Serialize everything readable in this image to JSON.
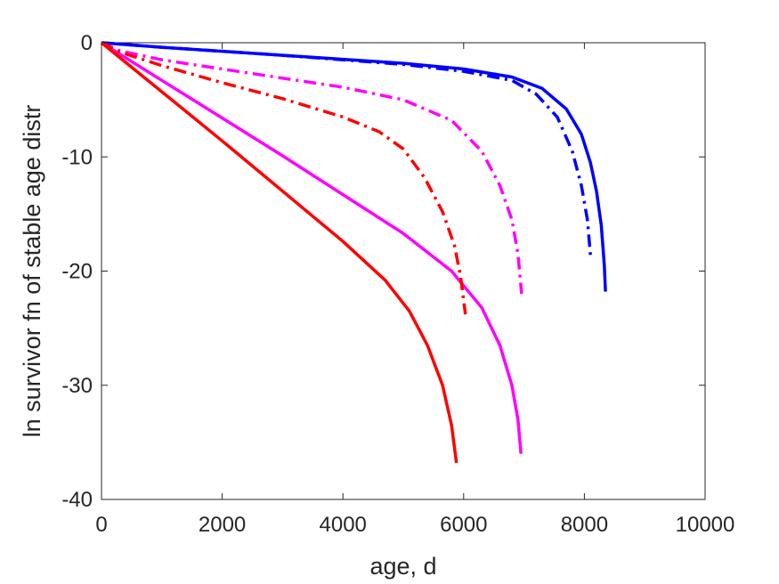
{
  "chart_data": {
    "type": "line",
    "title": "",
    "xlabel": "age, d",
    "ylabel": "ln survivor fn of stable age distr",
    "xlim": [
      0,
      10000
    ],
    "ylim": [
      -40,
      0
    ],
    "xticks": [
      0,
      2000,
      4000,
      6000,
      8000,
      10000
    ],
    "yticks": [
      -40,
      -30,
      -20,
      -10,
      0
    ],
    "xtick_labels": [
      "0",
      "2000",
      "4000",
      "6000",
      "8000",
      "10000"
    ],
    "ytick_labels": [
      "-40",
      "-30",
      "-20",
      "-10",
      "0"
    ],
    "grid": false,
    "legend": "none",
    "series": [
      {
        "color": "#0000ff",
        "dash": "solid",
        "x": [
          0,
          1000,
          2000,
          3000,
          4000,
          5000,
          6000,
          6800,
          7300,
          7700,
          7950,
          8100,
          8200,
          8280,
          8330,
          8350
        ],
        "y": [
          0,
          -0.4,
          -0.75,
          -1.1,
          -1.45,
          -1.8,
          -2.3,
          -3.0,
          -4.0,
          -5.8,
          -8.0,
          -10.5,
          -13.0,
          -16.0,
          -19.5,
          -21.8
        ]
      },
      {
        "color": "#0000ff",
        "dash": "dashdot",
        "x": [
          0,
          1000,
          2000,
          3000,
          4000,
          5000,
          6000,
          6800,
          7200,
          7550,
          7800,
          7950,
          8050,
          8100
        ],
        "y": [
          0,
          -0.4,
          -0.75,
          -1.1,
          -1.5,
          -1.9,
          -2.5,
          -3.3,
          -4.5,
          -6.5,
          -9.5,
          -12.5,
          -15.5,
          -18.6
        ]
      },
      {
        "color": "#ff00ff",
        "dash": "solid",
        "x": [
          0,
          1000,
          2000,
          3000,
          4000,
          5000,
          5800,
          6300,
          6600,
          6800,
          6900,
          6950
        ],
        "y": [
          0,
          -3.3,
          -6.6,
          -9.9,
          -13.3,
          -16.7,
          -20.0,
          -23.2,
          -26.5,
          -30.0,
          -33.0,
          -36.0
        ]
      },
      {
        "color": "#ff00ff",
        "dash": "dashdot",
        "x": [
          0,
          300,
          1000,
          2000,
          3000,
          4000,
          5000,
          5800,
          6300,
          6600,
          6800,
          6900,
          6960
        ],
        "y": [
          0,
          -0.7,
          -1.5,
          -2.3,
          -3.1,
          -3.9,
          -5.0,
          -6.8,
          -9.5,
          -12.5,
          -15.5,
          -18.5,
          -22.0
        ]
      },
      {
        "color": "#ff0000",
        "dash": "solid",
        "x": [
          0,
          1000,
          2000,
          3000,
          4000,
          4700,
          5100,
          5400,
          5650,
          5800,
          5880
        ],
        "y": [
          0,
          -4.3,
          -8.6,
          -13.0,
          -17.4,
          -20.8,
          -23.5,
          -26.5,
          -30.0,
          -33.5,
          -36.8
        ]
      },
      {
        "color": "#ff0000",
        "dash": "dashdot",
        "x": [
          0,
          300,
          1000,
          2000,
          3000,
          4000,
          4600,
          5000,
          5350,
          5650,
          5850,
          5950,
          6030
        ],
        "y": [
          0,
          -0.8,
          -2.0,
          -3.5,
          -4.9,
          -6.5,
          -7.8,
          -9.3,
          -11.8,
          -14.8,
          -17.8,
          -20.5,
          -23.8
        ]
      }
    ]
  }
}
